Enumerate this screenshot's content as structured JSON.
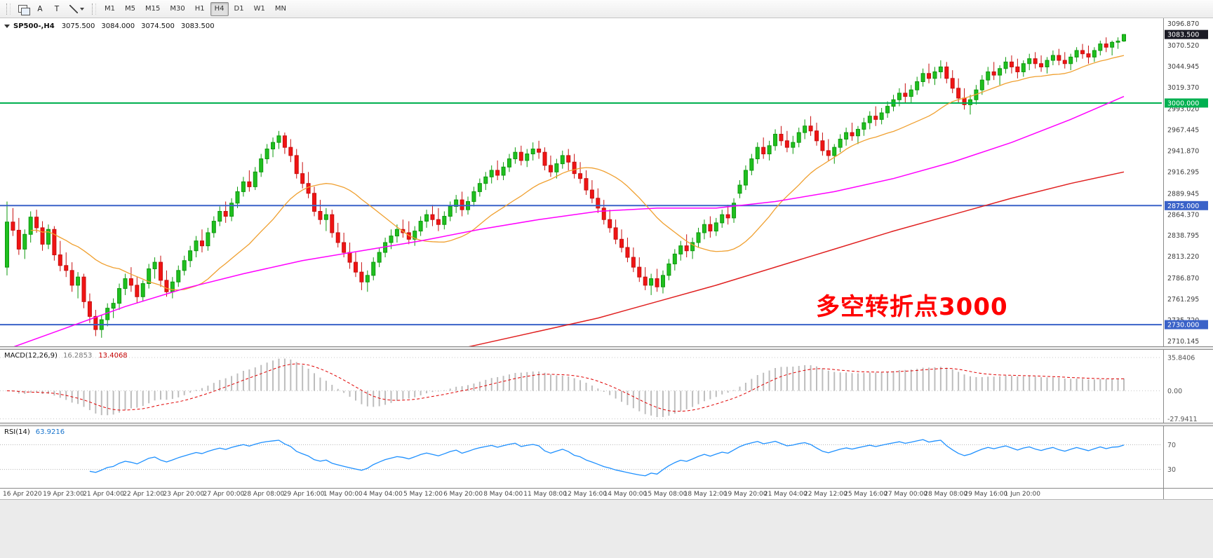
{
  "toolbar": {
    "tool_a_label": "A",
    "tool_t_label": "T",
    "timeframes": [
      "M1",
      "M5",
      "M15",
      "M30",
      "H1",
      "H4",
      "D1",
      "W1",
      "MN"
    ],
    "active_timeframe": "H4"
  },
  "chart": {
    "title": "SP500-,H4",
    "open": "3075.500",
    "high": "3084.000",
    "low": "3074.500",
    "close": "3083.500"
  },
  "price_axis": {
    "ticks": [
      "3096.870",
      "3070.520",
      "3044.945",
      "3019.370",
      "2993.020",
      "2967.445",
      "2941.870",
      "2916.295",
      "2889.945",
      "2864.370",
      "2838.795",
      "2813.220",
      "2786.870",
      "2761.295",
      "2735.720",
      "2710.145"
    ],
    "current_price": "3083.500",
    "levels": [
      {
        "price": 3000,
        "label": "3000.000",
        "color": "#00b050"
      },
      {
        "price": 2875,
        "label": "2875.000",
        "color": "#3a62c8"
      },
      {
        "price": 2730,
        "label": "2730.000",
        "color": "#3a62c8"
      }
    ]
  },
  "annotation": {
    "text": "多空转折点3000",
    "color": "#ff0000"
  },
  "macd": {
    "label": "MACD(12,26,9)",
    "value_main": "16.2853",
    "value_signal": "13.4068",
    "axis": [
      "35.8406",
      "0.00",
      "-27.9411"
    ]
  },
  "rsi": {
    "label": "RSI(14)",
    "value": "63.9216",
    "levels": [
      "70",
      "30"
    ]
  },
  "time_axis": [
    "16 Apr 2020",
    "19 Apr 23:00",
    "21 Apr 04:00",
    "22 Apr 12:00",
    "23 Apr 20:00",
    "27 Apr 00:00",
    "28 Apr 08:00",
    "29 Apr 16:00",
    "1 May 00:00",
    "4 May 04:00",
    "5 May 12:00",
    "6 May 20:00",
    "8 May 04:00",
    "11 May 08:00",
    "12 May 16:00",
    "14 May 00:00",
    "15 May 08:00",
    "18 May 12:00",
    "19 May 20:00",
    "21 May 04:00",
    "22 May 12:00",
    "25 May 16:00",
    "27 May 00:00",
    "28 May 08:00",
    "29 May 16:00",
    "1 Jun 20:00"
  ],
  "colors": {
    "candle_up_fill": "#1fbf1f",
    "candle_up_stroke": "#0e9a0e",
    "candle_down_fill": "#f01414",
    "candle_down_stroke": "#c81010",
    "ma_fast": "#f0a030",
    "ma_mid": "#ff00ff",
    "ma_slow": "#e02020",
    "level_green": "#00b050",
    "level_blue": "#3a62c8",
    "macd_hist": "#bdbdbd",
    "macd_signal": "#e00000",
    "rsi_line": "#1e90ff",
    "current_badge": "#1a1a24",
    "axis_text": "#3c3c3c",
    "grid_dotted": "#c8c8c8"
  },
  "chart_data": {
    "type": "candlestick",
    "symbol": "SP500-",
    "timeframe": "H4",
    "price_range": [
      2703.6,
      3103.3
    ],
    "ma_fast_period": 20,
    "candles": [
      [
        2800,
        2880,
        2790,
        2855
      ],
      [
        2855,
        2872,
        2838,
        2845
      ],
      [
        2845,
        2860,
        2815,
        2822
      ],
      [
        2822,
        2846,
        2810,
        2840
      ],
      [
        2840,
        2868,
        2830,
        2861
      ],
      [
        2861,
        2870,
        2842,
        2848
      ],
      [
        2848,
        2856,
        2820,
        2828
      ],
      [
        2828,
        2852,
        2822,
        2846
      ],
      [
        2846,
        2850,
        2808,
        2815
      ],
      [
        2815,
        2832,
        2795,
        2802
      ],
      [
        2802,
        2818,
        2788,
        2796
      ],
      [
        2796,
        2806,
        2770,
        2778
      ],
      [
        2778,
        2794,
        2762,
        2788
      ],
      [
        2788,
        2792,
        2750,
        2758
      ],
      [
        2758,
        2768,
        2732,
        2740
      ],
      [
        2740,
        2748,
        2716,
        2724
      ],
      [
        2724,
        2742,
        2714,
        2736
      ],
      [
        2736,
        2756,
        2728,
        2750
      ],
      [
        2750,
        2762,
        2738,
        2756
      ],
      [
        2756,
        2780,
        2748,
        2774
      ],
      [
        2774,
        2792,
        2766,
        2786
      ],
      [
        2786,
        2800,
        2770,
        2778
      ],
      [
        2778,
        2788,
        2756,
        2764
      ],
      [
        2764,
        2784,
        2758,
        2780
      ],
      [
        2780,
        2804,
        2774,
        2798
      ],
      [
        2798,
        2812,
        2786,
        2806
      ],
      [
        2806,
        2814,
        2776,
        2784
      ],
      [
        2784,
        2796,
        2764,
        2770
      ],
      [
        2770,
        2788,
        2762,
        2782
      ],
      [
        2782,
        2802,
        2776,
        2796
      ],
      [
        2796,
        2814,
        2790,
        2808
      ],
      [
        2808,
        2826,
        2800,
        2820
      ],
      [
        2820,
        2838,
        2812,
        2832
      ],
      [
        2832,
        2846,
        2818,
        2826
      ],
      [
        2826,
        2848,
        2820,
        2842
      ],
      [
        2842,
        2862,
        2836,
        2856
      ],
      [
        2856,
        2874,
        2850,
        2868
      ],
      [
        2868,
        2880,
        2854,
        2862
      ],
      [
        2862,
        2884,
        2856,
        2878
      ],
      [
        2878,
        2898,
        2872,
        2892
      ],
      [
        2892,
        2910,
        2886,
        2904
      ],
      [
        2904,
        2918,
        2892,
        2898
      ],
      [
        2898,
        2922,
        2894,
        2916
      ],
      [
        2916,
        2938,
        2910,
        2932
      ],
      [
        2932,
        2950,
        2926,
        2944
      ],
      [
        2944,
        2958,
        2934,
        2952
      ],
      [
        2952,
        2966,
        2944,
        2960
      ],
      [
        2960,
        2964,
        2938,
        2946
      ],
      [
        2946,
        2956,
        2928,
        2936
      ],
      [
        2936,
        2944,
        2908,
        2914
      ],
      [
        2914,
        2928,
        2896,
        2902
      ],
      [
        2902,
        2916,
        2884,
        2890
      ],
      [
        2890,
        2898,
        2862,
        2868
      ],
      [
        2868,
        2882,
        2852,
        2858
      ],
      [
        2858,
        2872,
        2844,
        2864
      ],
      [
        2864,
        2870,
        2836,
        2842
      ],
      [
        2842,
        2854,
        2824,
        2830
      ],
      [
        2830,
        2842,
        2812,
        2818
      ],
      [
        2818,
        2830,
        2798,
        2806
      ],
      [
        2806,
        2818,
        2788,
        2794
      ],
      [
        2794,
        2806,
        2772,
        2782
      ],
      [
        2782,
        2796,
        2770,
        2790
      ],
      [
        2790,
        2812,
        2784,
        2806
      ],
      [
        2806,
        2824,
        2800,
        2818
      ],
      [
        2818,
        2836,
        2812,
        2830
      ],
      [
        2830,
        2846,
        2822,
        2838
      ],
      [
        2838,
        2852,
        2830,
        2846
      ],
      [
        2846,
        2858,
        2836,
        2842
      ],
      [
        2842,
        2856,
        2828,
        2834
      ],
      [
        2834,
        2850,
        2826,
        2844
      ],
      [
        2844,
        2862,
        2838,
        2856
      ],
      [
        2856,
        2870,
        2848,
        2864
      ],
      [
        2864,
        2876,
        2850,
        2858
      ],
      [
        2858,
        2872,
        2844,
        2852
      ],
      [
        2852,
        2868,
        2846,
        2862
      ],
      [
        2862,
        2880,
        2856,
        2874
      ],
      [
        2874,
        2888,
        2866,
        2882
      ],
      [
        2882,
        2892,
        2862,
        2870
      ],
      [
        2870,
        2886,
        2864,
        2880
      ],
      [
        2880,
        2898,
        2874,
        2892
      ],
      [
        2892,
        2908,
        2886,
        2902
      ],
      [
        2902,
        2916,
        2894,
        2910
      ],
      [
        2910,
        2924,
        2902,
        2918
      ],
      [
        2918,
        2930,
        2906,
        2912
      ],
      [
        2912,
        2928,
        2906,
        2922
      ],
      [
        2922,
        2938,
        2916,
        2932
      ],
      [
        2932,
        2946,
        2926,
        2940
      ],
      [
        2940,
        2948,
        2924,
        2930
      ],
      [
        2930,
        2944,
        2922,
        2938
      ],
      [
        2938,
        2952,
        2930,
        2944
      ],
      [
        2944,
        2954,
        2932,
        2940
      ],
      [
        2940,
        2946,
        2918,
        2924
      ],
      [
        2924,
        2936,
        2910,
        2916
      ],
      [
        2916,
        2932,
        2908,
        2926
      ],
      [
        2926,
        2942,
        2920,
        2936
      ],
      [
        2936,
        2944,
        2918,
        2928
      ],
      [
        2928,
        2938,
        2908,
        2914
      ],
      [
        2914,
        2928,
        2902,
        2908
      ],
      [
        2908,
        2918,
        2888,
        2894
      ],
      [
        2894,
        2906,
        2878,
        2884
      ],
      [
        2884,
        2896,
        2866,
        2872
      ],
      [
        2872,
        2882,
        2852,
        2858
      ],
      [
        2858,
        2870,
        2842,
        2848
      ],
      [
        2848,
        2858,
        2828,
        2834
      ],
      [
        2834,
        2846,
        2818,
        2824
      ],
      [
        2824,
        2836,
        2806,
        2812
      ],
      [
        2812,
        2824,
        2794,
        2800
      ],
      [
        2800,
        2812,
        2782,
        2788
      ],
      [
        2788,
        2800,
        2772,
        2778
      ],
      [
        2778,
        2792,
        2766,
        2786
      ],
      [
        2786,
        2798,
        2770,
        2776
      ],
      [
        2776,
        2796,
        2768,
        2790
      ],
      [
        2790,
        2810,
        2784,
        2804
      ],
      [
        2804,
        2822,
        2796,
        2816
      ],
      [
        2816,
        2832,
        2808,
        2826
      ],
      [
        2826,
        2840,
        2812,
        2820
      ],
      [
        2820,
        2836,
        2810,
        2830
      ],
      [
        2830,
        2848,
        2824,
        2842
      ],
      [
        2842,
        2858,
        2834,
        2852
      ],
      [
        2852,
        2862,
        2836,
        2844
      ],
      [
        2844,
        2860,
        2838,
        2854
      ],
      [
        2854,
        2870,
        2848,
        2864
      ],
      [
        2864,
        2876,
        2852,
        2860
      ],
      [
        2860,
        2884,
        2854,
        2878
      ],
      [
        2890,
        2906,
        2884,
        2900
      ],
      [
        2900,
        2924,
        2894,
        2918
      ],
      [
        2918,
        2938,
        2912,
        2932
      ],
      [
        2932,
        2952,
        2926,
        2946
      ],
      [
        2946,
        2958,
        2932,
        2938
      ],
      [
        2938,
        2954,
        2930,
        2948
      ],
      [
        2948,
        2968,
        2942,
        2962
      ],
      [
        2962,
        2972,
        2948,
        2954
      ],
      [
        2954,
        2966,
        2940,
        2946
      ],
      [
        2946,
        2960,
        2938,
        2952
      ],
      [
        2952,
        2970,
        2946,
        2964
      ],
      [
        2964,
        2980,
        2956,
        2972
      ],
      [
        2972,
        2984,
        2960,
        2966
      ],
      [
        2966,
        2976,
        2948,
        2954
      ],
      [
        2954,
        2964,
        2936,
        2942
      ],
      [
        2942,
        2956,
        2930,
        2936
      ],
      [
        2936,
        2950,
        2926,
        2946
      ],
      [
        2946,
        2962,
        2940,
        2956
      ],
      [
        2956,
        2970,
        2948,
        2964
      ],
      [
        2964,
        2976,
        2954,
        2960
      ],
      [
        2960,
        2972,
        2950,
        2968
      ],
      [
        2968,
        2982,
        2960,
        2976
      ],
      [
        2976,
        2990,
        2968,
        2984
      ],
      [
        2984,
        2996,
        2972,
        2980
      ],
      [
        2980,
        2994,
        2974,
        2988
      ],
      [
        2988,
        3002,
        2982,
        2996
      ],
      [
        2996,
        3010,
        2990,
        3004
      ],
      [
        3004,
        3018,
        2996,
        3012
      ],
      [
        3012,
        3024,
        3000,
        3008
      ],
      [
        3008,
        3022,
        3000,
        3016
      ],
      [
        3016,
        3032,
        3010,
        3026
      ],
      [
        3026,
        3042,
        3020,
        3036
      ],
      [
        3036,
        3048,
        3024,
        3030
      ],
      [
        3030,
        3044,
        3022,
        3038
      ],
      [
        3038,
        3052,
        3030,
        3044
      ],
      [
        3044,
        3050,
        3024,
        3030
      ],
      [
        3030,
        3040,
        3012,
        3018
      ],
      [
        3018,
        3030,
        3000,
        3006
      ],
      [
        3006,
        3018,
        2992,
        2998
      ],
      [
        2998,
        3010,
        2986,
        3004
      ],
      [
        3004,
        3022,
        2998,
        3016
      ],
      [
        3016,
        3034,
        3010,
        3028
      ],
      [
        3028,
        3044,
        3022,
        3038
      ],
      [
        3038,
        3050,
        3028,
        3034
      ],
      [
        3034,
        3046,
        3022,
        3042
      ],
      [
        3042,
        3056,
        3036,
        3050
      ],
      [
        3050,
        3058,
        3036,
        3044
      ],
      [
        3044,
        3054,
        3030,
        3038
      ],
      [
        3038,
        3052,
        3032,
        3048
      ],
      [
        3048,
        3060,
        3040,
        3054
      ],
      [
        3054,
        3062,
        3042,
        3048
      ],
      [
        3048,
        3058,
        3038,
        3044
      ],
      [
        3044,
        3056,
        3036,
        3052
      ],
      [
        3052,
        3064,
        3046,
        3058
      ],
      [
        3058,
        3066,
        3046,
        3052
      ],
      [
        3052,
        3062,
        3042,
        3048
      ],
      [
        3048,
        3060,
        3040,
        3056
      ],
      [
        3056,
        3068,
        3050,
        3064
      ],
      [
        3064,
        3072,
        3054,
        3060
      ],
      [
        3060,
        3070,
        3048,
        3056
      ],
      [
        3056,
        3068,
        3050,
        3064
      ],
      [
        3064,
        3076,
        3058,
        3072
      ],
      [
        3072,
        3080,
        3062,
        3068
      ],
      [
        3068,
        3076,
        3058,
        3074
      ],
      [
        3074,
        3080,
        3066,
        3075.5
      ],
      [
        3075.5,
        3084,
        3074.5,
        3083.5
      ]
    ],
    "ma_mid_magenta": [
      [
        0,
        2700
      ],
      [
        10,
        2726
      ],
      [
        20,
        2752
      ],
      [
        30,
        2774
      ],
      [
        40,
        2792
      ],
      [
        50,
        2808
      ],
      [
        60,
        2820
      ],
      [
        70,
        2832
      ],
      [
        80,
        2846
      ],
      [
        90,
        2858
      ],
      [
        100,
        2868
      ],
      [
        110,
        2872
      ],
      [
        120,
        2872
      ],
      [
        130,
        2880
      ],
      [
        140,
        2892
      ],
      [
        150,
        2908
      ],
      [
        160,
        2928
      ],
      [
        170,
        2952
      ],
      [
        180,
        2980
      ],
      [
        189,
        3008
      ]
    ],
    "ma_slow_red": [
      [
        70,
        2690
      ],
      [
        80,
        2706
      ],
      [
        90,
        2722
      ],
      [
        100,
        2738
      ],
      [
        110,
        2758
      ],
      [
        120,
        2778
      ],
      [
        130,
        2800
      ],
      [
        140,
        2822
      ],
      [
        150,
        2844
      ],
      [
        160,
        2864
      ],
      [
        170,
        2884
      ],
      [
        180,
        2902
      ],
      [
        189,
        2916
      ]
    ]
  }
}
